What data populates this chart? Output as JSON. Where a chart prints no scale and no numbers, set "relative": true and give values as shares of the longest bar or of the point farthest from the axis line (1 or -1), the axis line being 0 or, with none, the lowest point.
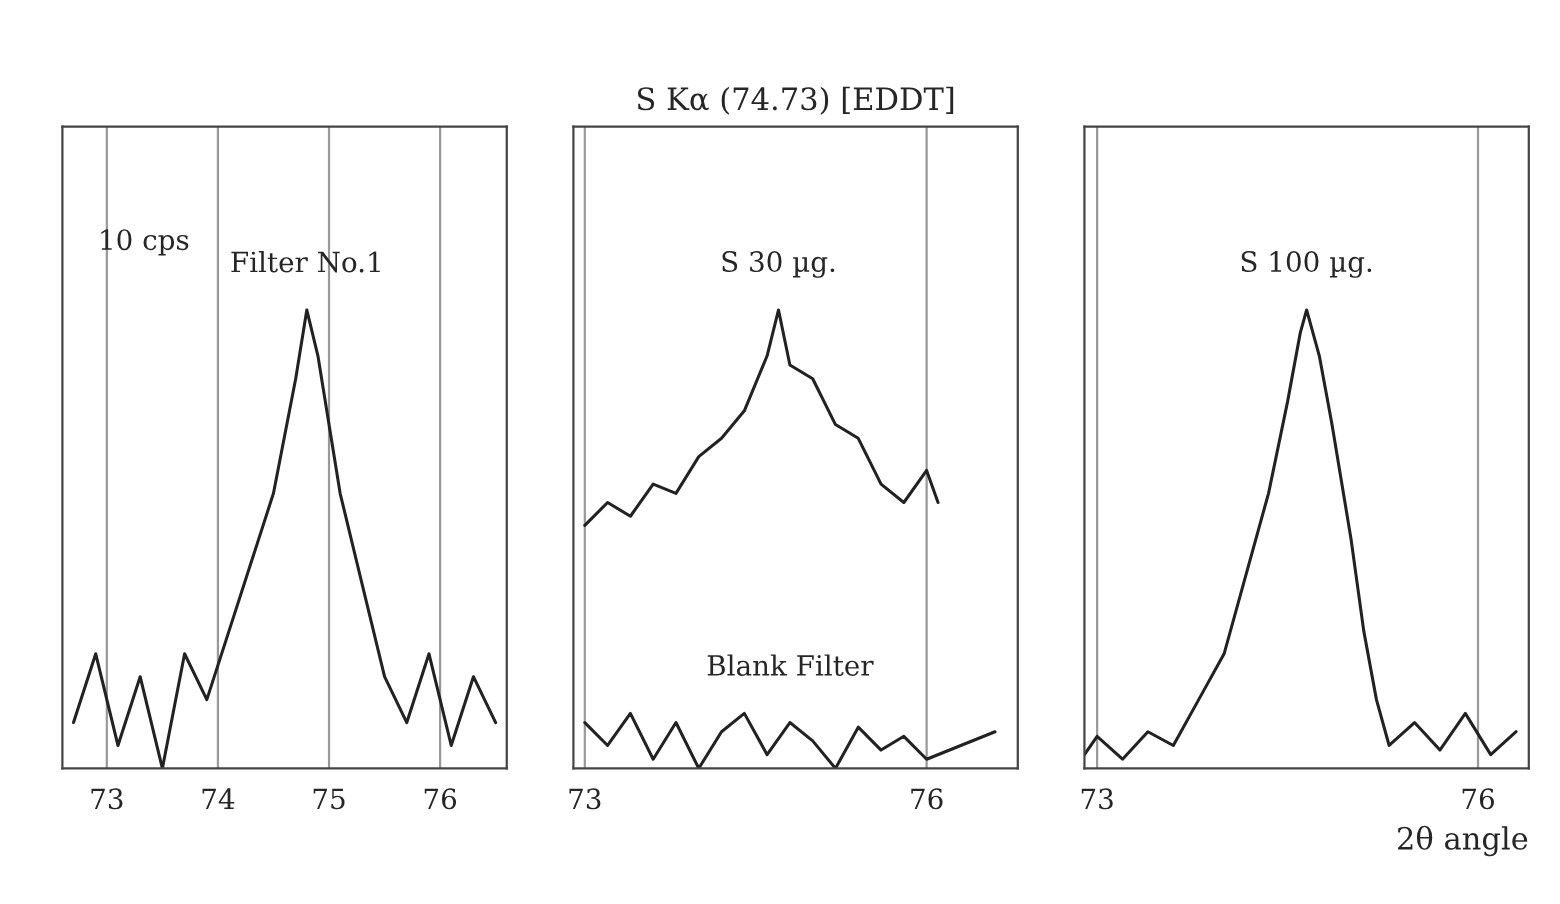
{
  "chart_data": [
    {
      "type": "line",
      "relative": true,
      "xlim": [
        72.6,
        76.6
      ],
      "xticks": [
        73,
        74,
        75,
        76
      ],
      "tick_labels": "x",
      "grid": "x",
      "annotations": [
        "10 cps"
      ],
      "series": [
        {
          "name": "Filter No.1",
          "color": "#222222",
          "x": [
            72.7,
            72.9,
            73.1,
            73.3,
            73.5,
            73.7,
            73.9,
            74.1,
            74.3,
            74.5,
            74.7,
            74.8,
            74.9,
            75.0,
            75.1,
            75.3,
            75.5,
            75.7,
            75.9,
            76.1,
            76.3,
            76.5
          ],
          "values": [
            0.1,
            0.25,
            0.05,
            0.2,
            0.0,
            0.25,
            0.15,
            0.3,
            0.45,
            0.6,
            0.85,
            1.0,
            0.9,
            0.75,
            0.6,
            0.4,
            0.2,
            0.1,
            0.25,
            0.05,
            0.2,
            0.1
          ]
        }
      ]
    },
    {
      "type": "line",
      "relative": true,
      "xlim": [
        72.9,
        76.8
      ],
      "xticks": [
        73,
        76
      ],
      "tick_labels": "x",
      "grid": "x",
      "title": "S Kα (74.73) [EDDT]",
      "series": [
        {
          "name": "S 30 µg.",
          "color": "#222222",
          "x": [
            73.0,
            73.2,
            73.4,
            73.6,
            73.8,
            74.0,
            74.2,
            74.4,
            74.6,
            74.7,
            74.8,
            75.0,
            75.2,
            75.4,
            75.6,
            75.8,
            76.0,
            76.1
          ],
          "values": [
            0.53,
            0.58,
            0.55,
            0.62,
            0.6,
            0.68,
            0.72,
            0.78,
            0.9,
            1.0,
            0.88,
            0.85,
            0.75,
            0.72,
            0.62,
            0.58,
            0.65,
            0.58
          ]
        },
        {
          "name": "Blank Filter",
          "color": "#222222",
          "x": [
            73.0,
            73.2,
            73.4,
            73.6,
            73.8,
            74.0,
            74.2,
            74.4,
            74.6,
            74.8,
            75.0,
            75.2,
            75.4,
            75.6,
            75.8,
            76.0,
            76.3,
            76.6
          ],
          "values": [
            0.1,
            0.05,
            0.12,
            0.02,
            0.1,
            0.0,
            0.08,
            0.12,
            0.03,
            0.1,
            0.06,
            0.0,
            0.09,
            0.04,
            0.07,
            0.02,
            0.05,
            0.08
          ]
        }
      ]
    },
    {
      "type": "line",
      "relative": true,
      "xlim": [
        72.9,
        76.4
      ],
      "xticks": [
        73,
        76
      ],
      "tick_labels": "x",
      "grid": "x",
      "xlabel": "2θ angle",
      "series": [
        {
          "name": "S 100 µg.",
          "color": "#222222",
          "x": [
            72.9,
            73.0,
            73.2,
            73.4,
            73.6,
            73.8,
            74.0,
            74.2,
            74.35,
            74.5,
            74.6,
            74.65,
            74.75,
            74.85,
            75.0,
            75.1,
            75.2,
            75.3,
            75.5,
            75.7,
            75.9,
            76.1,
            76.3
          ],
          "values": [
            0.03,
            0.07,
            0.02,
            0.08,
            0.05,
            0.15,
            0.25,
            0.45,
            0.6,
            0.8,
            0.95,
            1.0,
            0.9,
            0.75,
            0.5,
            0.3,
            0.15,
            0.05,
            0.1,
            0.04,
            0.12,
            0.03,
            0.08
          ]
        }
      ]
    }
  ]
}
